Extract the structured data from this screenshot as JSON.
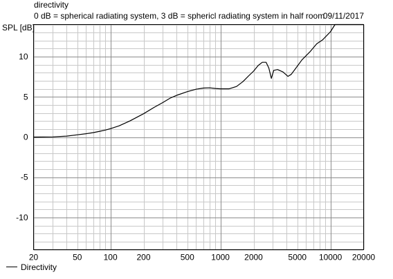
{
  "chart_data": {
    "type": "line",
    "title": "directivity",
    "subtitle": "0 dB = spherical radiating system, 3 dB = sphericl radiating system in half room",
    "date": "09/11/2017",
    "ylabel": "SPL [dB]",
    "xlabel": "",
    "xscale": "log",
    "xlim": [
      20,
      20000
    ],
    "ylim": [
      -14,
      14
    ],
    "grid": true,
    "legend_position": "bottom-left",
    "x_ticks": [
      20,
      50,
      100,
      200,
      500,
      1000,
      2000,
      5000,
      10000,
      20000
    ],
    "x_tick_labels": [
      "20",
      "50",
      "100",
      "200",
      "500",
      "1000",
      "2000",
      "5000",
      "10000",
      "20000"
    ],
    "y_ticks": [
      10,
      5,
      0,
      -5,
      -10
    ],
    "y_tick_labels": [
      "10",
      "5",
      "0",
      "-5",
      "-10"
    ],
    "series": [
      {
        "name": "Directivity",
        "color": "#000000",
        "x": [
          20,
          30,
          40,
          50,
          60,
          70,
          80,
          90,
          100,
          120,
          150,
          200,
          250,
          300,
          350,
          400,
          500,
          600,
          700,
          800,
          900,
          1000,
          1200,
          1400,
          1600,
          1800,
          2000,
          2200,
          2400,
          2600,
          2750,
          2900,
          3050,
          3300,
          3700,
          4100,
          4400,
          4800,
          5500,
          6500,
          7500,
          8500,
          10000,
          11000,
          12000,
          20000
        ],
        "y": [
          0,
          0.03,
          0.12,
          0.28,
          0.42,
          0.56,
          0.72,
          0.88,
          1.05,
          1.4,
          2.0,
          2.9,
          3.7,
          4.3,
          4.85,
          5.2,
          5.65,
          5.95,
          6.1,
          6.12,
          6.05,
          6.0,
          6.0,
          6.3,
          6.9,
          7.6,
          8.2,
          8.9,
          9.3,
          9.3,
          8.6,
          7.3,
          8.3,
          8.4,
          8.1,
          7.55,
          7.8,
          8.5,
          9.6,
          10.6,
          11.6,
          12.1,
          13.1,
          14,
          14,
          14
        ]
      }
    ]
  }
}
